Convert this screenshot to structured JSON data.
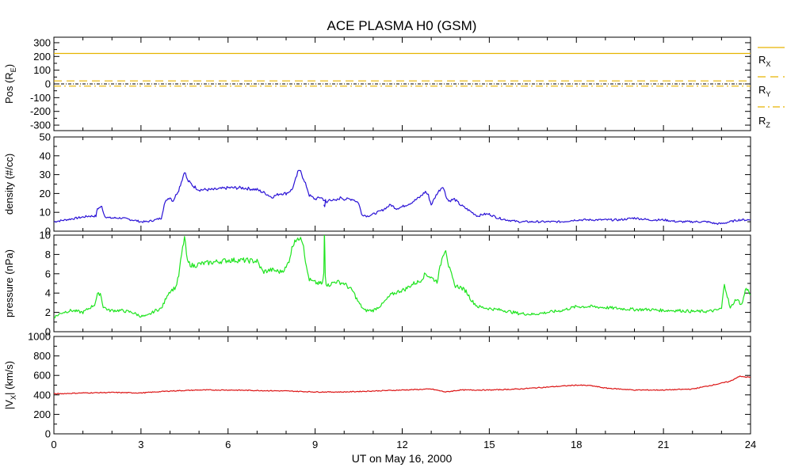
{
  "chart_data": {
    "type": "line",
    "title": "ACE PLASMA H0 (GSM)",
    "xlabel": "UT on May 16, 2000",
    "xlim": [
      0,
      24
    ],
    "xticks": [
      0,
      3,
      6,
      9,
      12,
      15,
      18,
      21,
      24
    ],
    "panels": [
      {
        "id": "pos",
        "ylabel_main": "Pos (R",
        "ylabel_sub": "E",
        "ylabel_end": ")",
        "ylim": [
          -340,
          340
        ],
        "yticks": [
          -300,
          -200,
          -100,
          0,
          100,
          200,
          300
        ],
        "series": [
          {
            "name": "RX",
            "label_main": "R",
            "label_sub": "X",
            "color": "#e6b400",
            "dash": "solid",
            "x": [
              0,
              24
            ],
            "y": [
              222,
              222
            ]
          },
          {
            "name": "RY",
            "label_main": "R",
            "label_sub": "Y",
            "color": "#e6b400",
            "dash": "long",
            "x": [
              0,
              24
            ],
            "y": [
              22,
              22
            ]
          },
          {
            "name": "RZ",
            "label_main": "R",
            "label_sub": "Z",
            "color": "#e6b400",
            "dash": "dashdot",
            "x": [
              0,
              24
            ],
            "y": [
              -16,
              -16
            ]
          }
        ],
        "zero_line": true
      },
      {
        "id": "density",
        "ylabel_main": "density (#/cc)",
        "ylim": [
          0,
          50
        ],
        "yticks": [
          0,
          10,
          20,
          30,
          40,
          50
        ],
        "series": [
          {
            "color": "#2a12d6",
            "x": [
              0,
              0.4,
              0.8,
              1.2,
              1.45,
              1.5,
              1.65,
              1.75,
              1.9,
              2.3,
              2.7,
              3.0,
              3.2,
              3.5,
              3.7,
              3.8,
              3.9,
              4.0,
              4.1,
              4.3,
              4.45,
              4.5,
              4.6,
              4.8,
              5.0,
              5.5,
              6.0,
              6.5,
              7.0,
              7.3,
              7.5,
              7.8,
              8.0,
              8.2,
              8.3,
              8.4,
              8.5,
              8.6,
              8.7,
              8.8,
              8.9,
              9.0,
              9.2,
              9.35,
              9.4,
              9.5,
              9.7,
              9.9,
              10.0,
              10.3,
              10.5,
              10.6,
              10.8,
              11.0,
              11.3,
              11.6,
              11.8,
              12.0,
              12.3,
              12.6,
              12.8,
              12.9,
              13.0,
              13.2,
              13.4,
              13.5,
              13.6,
              13.8,
              14.0,
              14.2,
              14.4,
              14.6,
              14.8,
              15.0,
              15.3,
              15.6,
              16.0,
              16.5,
              17.0,
              17.5,
              18.0,
              18.5,
              19.0,
              19.5,
              20.0,
              20.5,
              21.0,
              21.5,
              22.0,
              22.5,
              22.8,
              23.0,
              23.3,
              23.6,
              23.8,
              24.0
            ],
            "y": [
              5,
              6,
              7,
              8,
              8,
              12,
              13,
              8,
              7,
              7,
              6,
              5,
              5,
              6,
              7,
              14,
              17,
              18,
              16,
              22,
              29,
              32,
              27,
              24,
              22,
              22,
              23,
              23,
              22,
              20,
              18,
              20,
              20,
              22,
              26,
              31,
              33,
              27,
              24,
              19,
              18,
              17,
              18,
              16,
              15,
              17,
              16,
              18,
              17,
              17,
              15,
              9,
              8,
              9,
              11,
              14,
              12,
              13,
              15,
              18,
              21,
              19,
              14,
              20,
              24,
              19,
              16,
              17,
              14,
              12,
              10,
              8,
              9,
              9,
              7,
              6,
              5,
              5,
              5,
              5,
              6,
              6,
              6,
              6,
              7,
              6,
              6,
              5,
              5,
              5,
              4,
              4,
              5,
              6,
              6,
              6
            ]
          },
          {
            "color": "#2a12d6",
            "x": [
              9.3,
              9.33,
              9.36
            ],
            "y": [
              14,
              13,
              17
            ]
          }
        ]
      },
      {
        "id": "pressure",
        "ylabel_main": "pressure (nPa)",
        "ylim": [
          0,
          10
        ],
        "yticks": [
          0,
          2,
          4,
          6,
          8,
          10
        ],
        "series": [
          {
            "color": "#1ee41e",
            "x": [
              0,
              0.3,
              0.6,
              1.0,
              1.4,
              1.5,
              1.6,
              1.7,
              1.9,
              2.3,
              2.7,
              3.0,
              3.2,
              3.5,
              3.7,
              3.8,
              3.9,
              4.0,
              4.2,
              4.3,
              4.4,
              4.5,
              4.6,
              4.8,
              5.0,
              5.5,
              6.0,
              6.5,
              7.0,
              7.2,
              7.5,
              7.8,
              8.0,
              8.1,
              8.2,
              8.3,
              8.4,
              8.5,
              8.6,
              8.7,
              8.8,
              8.9,
              9.1,
              9.25,
              9.3,
              9.32,
              9.35,
              9.38,
              9.45,
              9.7,
              10.0,
              10.3,
              10.5,
              10.7,
              11.0,
              11.3,
              11.6,
              11.9,
              12.1,
              12.4,
              12.6,
              12.8,
              13.0,
              13.2,
              13.4,
              13.5,
              13.6,
              13.8,
              14.0,
              14.2,
              14.4,
              14.6,
              15.0,
              15.5,
              16.0,
              16.5,
              17.0,
              17.5,
              18.0,
              18.5,
              19.0,
              19.5,
              20.0,
              20.5,
              21.0,
              21.5,
              22.0,
              22.5,
              22.8,
              23.0,
              23.1,
              23.3,
              23.5,
              23.7,
              23.85,
              24.0
            ],
            "y": [
              1.5,
              2.0,
              2.2,
              2.0,
              2.8,
              3.8,
              4.0,
              2.6,
              2.2,
              2.2,
              2.0,
              1.6,
              1.6,
              2.2,
              2.4,
              3.0,
              3.8,
              4.2,
              4.6,
              5.8,
              8.0,
              9.8,
              7.2,
              6.8,
              7.0,
              7.2,
              7.4,
              7.4,
              7.3,
              6.2,
              6.4,
              6.2,
              6.6,
              7.4,
              8.6,
              9.6,
              9.4,
              10.0,
              9.0,
              6.6,
              5.4,
              5.2,
              5.0,
              5.0,
              6.0,
              10.5,
              6.0,
              5.0,
              4.8,
              5.2,
              5.0,
              4.2,
              3.0,
              2.2,
              2.2,
              2.8,
              3.8,
              4.2,
              4.4,
              5.0,
              5.2,
              6.0,
              5.6,
              5.2,
              8.0,
              8.6,
              6.8,
              4.8,
              4.6,
              4.2,
              3.2,
              2.6,
              2.4,
              2.2,
              1.9,
              1.8,
              2.0,
              2.2,
              2.6,
              2.6,
              2.5,
              2.4,
              2.3,
              2.3,
              2.2,
              2.2,
              2.1,
              2.1,
              2.2,
              2.4,
              5.0,
              2.4,
              3.4,
              2.8,
              4.6,
              3.8
            ]
          }
        ]
      },
      {
        "id": "vx",
        "ylabel_main": "|V",
        "ylabel_sub": "X",
        "ylabel_end": "| (km/s)",
        "ylim": [
          0,
          1000
        ],
        "yticks": [
          0,
          200,
          400,
          600,
          800,
          1000
        ],
        "series": [
          {
            "color": "#dc1414",
            "x": [
              0,
              1.0,
              2.0,
              3.0,
              3.5,
              4.0,
              5.0,
              6.0,
              7.0,
              8.0,
              9.0,
              10.0,
              11.0,
              12.0,
              13.0,
              13.5,
              14.0,
              15.0,
              16.0,
              17.0,
              18.0,
              18.5,
              19.0,
              20.0,
              21.0,
              22.0,
              22.5,
              23.0,
              23.3,
              23.6,
              24.0
            ],
            "y": [
              410,
              420,
              425,
              420,
              430,
              440,
              450,
              450,
              445,
              440,
              430,
              430,
              440,
              450,
              460,
              430,
              450,
              450,
              460,
              480,
              500,
              495,
              470,
              450,
              450,
              460,
              490,
              520,
              540,
              590,
              580
            ]
          }
        ]
      }
    ],
    "legend": [
      "R",
      "X",
      "R",
      "Y",
      "R",
      "Z"
    ]
  }
}
